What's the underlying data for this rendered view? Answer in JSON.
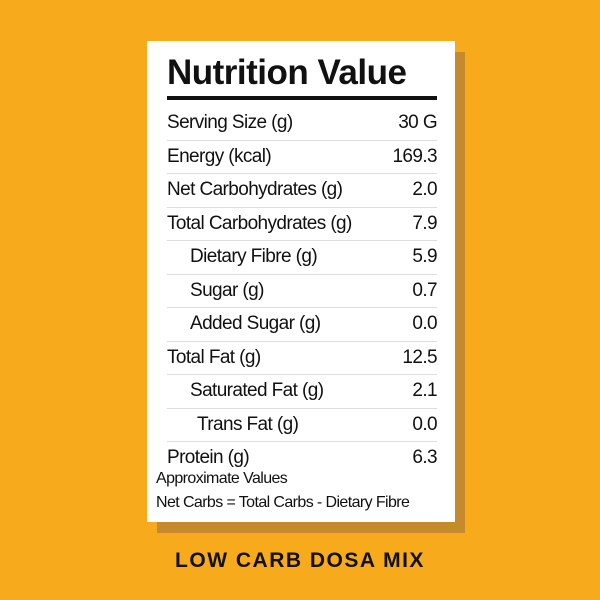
{
  "label": {
    "title": "Nutrition Value",
    "rows": [
      {
        "label": "Serving Size (g)",
        "value": "30 G",
        "indent": 0
      },
      {
        "label": "Energy (kcal)",
        "value": "169.3",
        "indent": 0
      },
      {
        "label": "Net Carbohydrates (g)",
        "value": "2.0",
        "indent": 0
      },
      {
        "label": "Total Carbohydrates (g)",
        "value": "7.9",
        "indent": 0
      },
      {
        "label": "Dietary Fibre (g)",
        "value": "5.9",
        "indent": 1
      },
      {
        "label": "Sugar (g)",
        "value": "0.7",
        "indent": 1
      },
      {
        "label": "Added Sugar (g)",
        "value": "0.0",
        "indent": 1
      },
      {
        "label": "Total Fat (g)",
        "value": "12.5",
        "indent": 0
      },
      {
        "label": "Saturated Fat (g)",
        "value": "2.1",
        "indent": 1
      },
      {
        "label": "Trans Fat (g)",
        "value": "0.0",
        "indent": 2
      },
      {
        "label": "Protein (g)",
        "value": "6.3",
        "indent": 0
      }
    ],
    "note1": "Approximate Values",
    "note2": "Net Carbs = Total Carbs - Dietary Fibre"
  },
  "product_name": "LOW CARB DOSA MIX",
  "colors": {
    "background": "#f6aa1c",
    "shadow": "#c58a2c",
    "card": "#ffffff",
    "text": "#111111"
  }
}
